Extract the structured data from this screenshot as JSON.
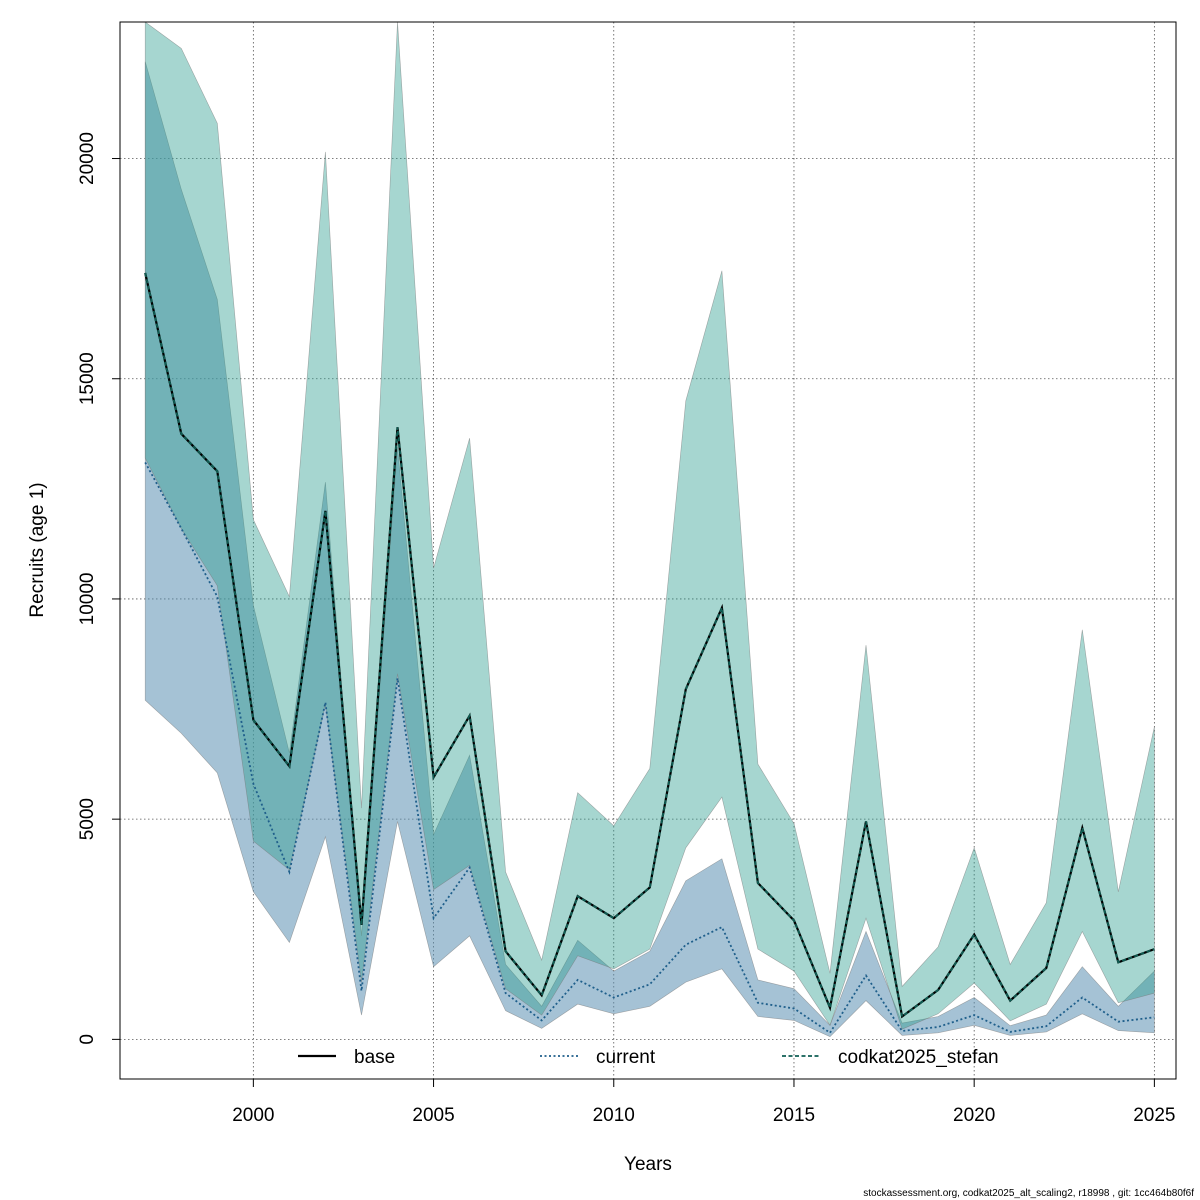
{
  "chart_data": {
    "type": "area",
    "xlabel": "Years",
    "ylabel": "Recruits (age 1)",
    "xlim": [
      1996.3,
      2025.6
    ],
    "ylim": [
      -900,
      23100
    ],
    "x_ticks": [
      2000,
      2005,
      2010,
      2015,
      2020,
      2025
    ],
    "y_ticks": [
      0,
      5000,
      10000,
      15000,
      20000
    ],
    "grid": true,
    "legend_position": "bottom",
    "x": [
      1997,
      1998,
      1999,
      2000,
      2001,
      2002,
      2003,
      2004,
      2005,
      2006,
      2007,
      2008,
      2009,
      2010,
      2011,
      2012,
      2013,
      2014,
      2015,
      2016,
      2017,
      2018,
      2019,
      2020,
      2021,
      2022,
      2023,
      2024,
      2025
    ],
    "series": [
      {
        "name": "base",
        "color": "#000000",
        "line_style": "solid",
        "band_color": "#2a9d8f",
        "values": [
          17400,
          13750,
          12900,
          7250,
          6200,
          12000,
          2600,
          13900,
          5950,
          7350,
          2000,
          1000,
          3250,
          2750,
          3450,
          7950,
          9800,
          3550,
          2700,
          720,
          4950,
          520,
          1120,
          2380,
          880,
          1620,
          4800,
          1750,
          2050
        ],
        "lower": [
          13200,
          11600,
          10300,
          4500,
          3850,
          7600,
          1300,
          8300,
          3400,
          3950,
          1150,
          550,
          1900,
          1600,
          2050,
          4350,
          5500,
          2050,
          1550,
          320,
          2750,
          230,
          580,
          1280,
          420,
          800,
          2450,
          830,
          1050
        ],
        "upper": [
          23100,
          22500,
          20800,
          11800,
          10050,
          20150,
          5250,
          23100,
          10700,
          13650,
          3800,
          1800,
          5600,
          4850,
          6150,
          14500,
          17450,
          6250,
          4900,
          1500,
          8950,
          1200,
          2100,
          4350,
          1700,
          3100,
          9300,
          3350,
          7100
        ]
      },
      {
        "name": "current",
        "color": "#1f5f8b",
        "line_style": "dotted",
        "band_color": "#5b8fb3",
        "values": [
          13100,
          11600,
          10050,
          5800,
          3800,
          7650,
          1100,
          8200,
          2750,
          3900,
          1050,
          430,
          1350,
          950,
          1250,
          2150,
          2550,
          830,
          700,
          150,
          1450,
          190,
          280,
          550,
          170,
          300,
          950,
          400,
          500
        ],
        "lower": [
          7700,
          6950,
          6050,
          3350,
          2200,
          4600,
          550,
          4950,
          1650,
          2350,
          650,
          250,
          800,
          580,
          750,
          1300,
          1600,
          520,
          430,
          60,
          880,
          90,
          150,
          320,
          90,
          170,
          580,
          200,
          150
        ],
        "upper": [
          22200,
          19300,
          16800,
          9850,
          6500,
          12650,
          2350,
          13450,
          4650,
          6450,
          1700,
          750,
          2250,
          1550,
          2000,
          3600,
          4100,
          1350,
          1150,
          320,
          2450,
          370,
          520,
          950,
          310,
          550,
          1650,
          750,
          1550
        ]
      },
      {
        "name": "codkat2025_stefan",
        "color": "#0f5e54",
        "line_style": "dashed",
        "band_color": "#2a9d8f",
        "values": [
          17400,
          13750,
          12900,
          7250,
          6200,
          12000,
          2600,
          13900,
          5950,
          7350,
          2000,
          1000,
          3250,
          2750,
          3450,
          7950,
          9800,
          3550,
          2700,
          720,
          4950,
          520,
          1120,
          2380,
          880,
          1620,
          4800,
          1750,
          2050
        ],
        "lower": [],
        "upper": []
      }
    ],
    "footer_note": "stockassessment.org, codkat2025_alt_scaling2, r18998 , git: 1cc464b80f6f"
  }
}
